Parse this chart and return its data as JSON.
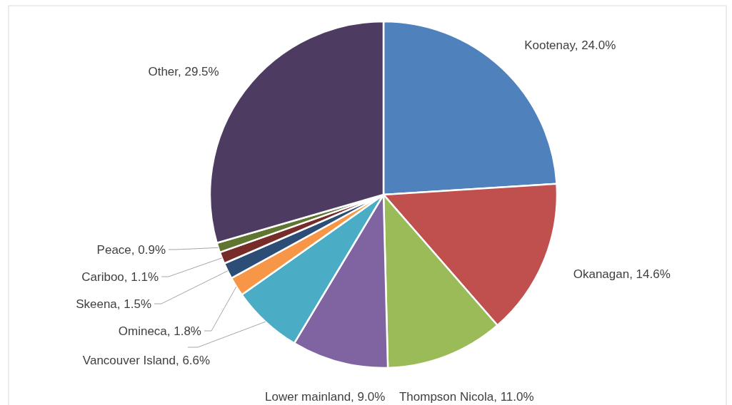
{
  "chart_data": {
    "type": "pie",
    "categories": [
      "Kootenay",
      "Okanagan",
      "Thompson Nicola",
      "Lower mainland",
      "Vancouver Island",
      "Omineca",
      "Skeena",
      "Cariboo",
      "Peace",
      "Other"
    ],
    "values": [
      24.0,
      14.6,
      11.0,
      9.0,
      6.6,
      1.8,
      1.5,
      1.1,
      0.9,
      29.5
    ],
    "value_labels": [
      "24.0%",
      "14.6%",
      "11.0%",
      "9.0%",
      "6.6%",
      "1.8%",
      "1.5%",
      "1.1%",
      "0.9%",
      "29.5%"
    ],
    "colors": [
      "#4f81bd",
      "#c0504d",
      "#9bbb59",
      "#8064a2",
      "#4bacc6",
      "#f79646",
      "#2c4d75",
      "#772c2a",
      "#5f7530",
      "#4d3b62"
    ]
  }
}
